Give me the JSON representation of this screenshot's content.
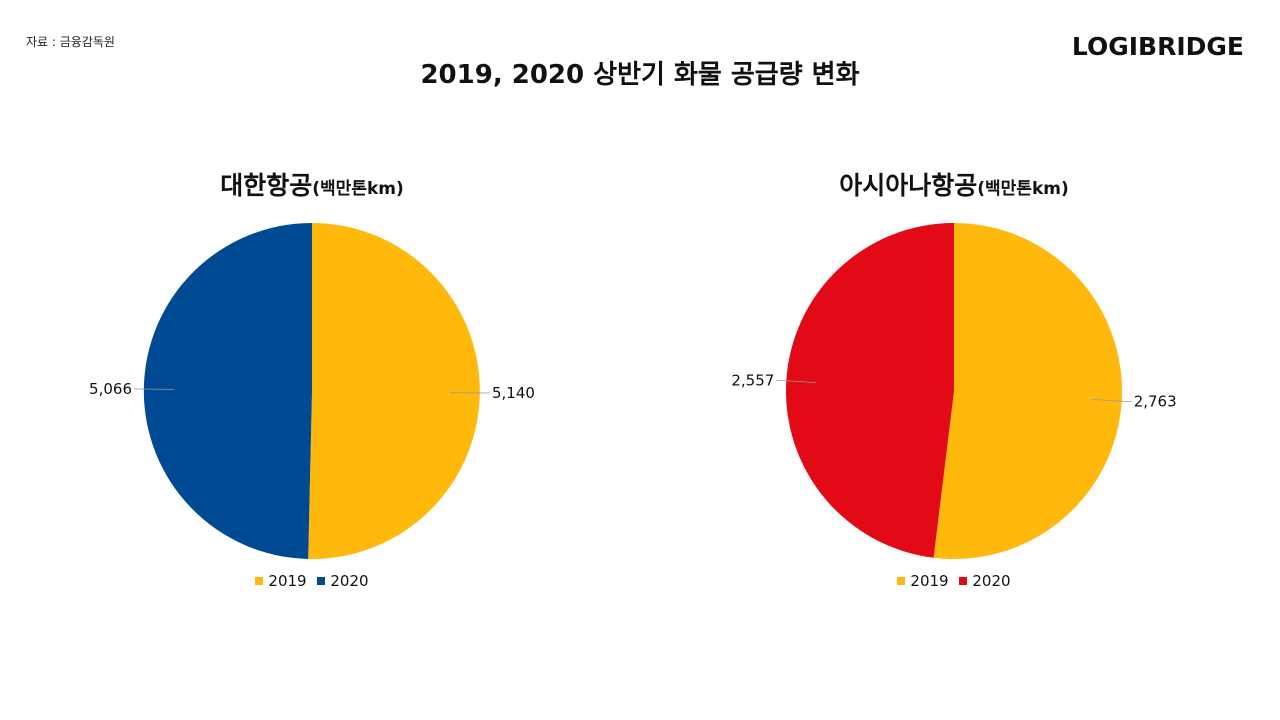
{
  "header": {
    "source": "자료 : 금융감독원",
    "logo": "LOGIBRIDGE",
    "title": "2019, 2020 상반기 화물 공급량 변화"
  },
  "colors": {
    "y2019": "#FFB80C",
    "korean_air_2020": "#004A93",
    "asiana_2020": "#E10A16",
    "leader_line": "#999999"
  },
  "chart_data": [
    {
      "type": "pie",
      "title": "대한항공",
      "unit": "(백만톤km)",
      "categories": [
        "2019",
        "2020"
      ],
      "values": [
        5140,
        5066
      ],
      "labels": [
        "5,140",
        "5,066"
      ],
      "legend": [
        "2019",
        "2020"
      ],
      "slice_colors": [
        "#FFB80C",
        "#004A93"
      ]
    },
    {
      "type": "pie",
      "title": "아시아나항공",
      "unit": "(백만톤km)",
      "categories": [
        "2019",
        "2020"
      ],
      "values": [
        2763,
        2557
      ],
      "labels": [
        "2,763",
        "2,557"
      ],
      "legend": [
        "2019",
        "2020"
      ],
      "slice_colors": [
        "#FFB80C",
        "#E10A16"
      ]
    }
  ]
}
